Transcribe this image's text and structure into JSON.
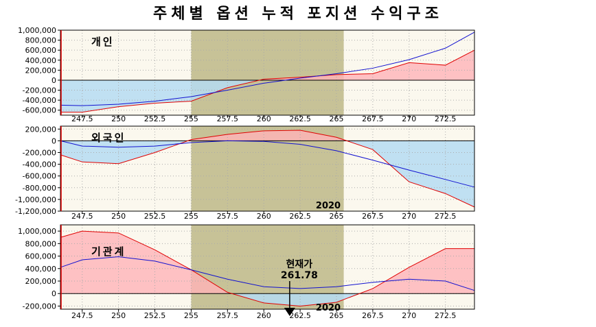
{
  "title": "주체별 옵션 누적 포지션 수익구조",
  "colors": {
    "plot_bg": "#fbf8ee",
    "band": "#b5b07a",
    "profit_fill": "#ffb3b8",
    "loss_fill": "#b5dcf2",
    "red_line": "#e00000",
    "blue_line": "#1010d0",
    "grid": "#aaaaaa"
  },
  "chart_data": [
    {
      "type": "area",
      "label": "개인",
      "x_ticks": [
        "247.5",
        "250",
        "252.5",
        "255",
        "257.5",
        "260",
        "262.5",
        "265",
        "267.5",
        "270",
        "272.5"
      ],
      "xlim": [
        246,
        274.5
      ],
      "ylim": [
        -700000,
        1000000
      ],
      "y_ticks": [
        1000000,
        800000,
        600000,
        400000,
        200000,
        0,
        -200000,
        -400000,
        -600000
      ],
      "y_tick_labels": [
        "1,000,000",
        "800,000",
        "600,000",
        "400,000",
        "200,000",
        "0",
        "-200,000",
        "-400,000",
        "-600,000"
      ],
      "highlight_x": [
        255,
        265.5
      ],
      "series": [
        {
          "role": "expiry",
          "style": "red-fill",
          "x": [
            246,
            247.5,
            250,
            252.5,
            255,
            257.5,
            260,
            262.5,
            265,
            267.5,
            270,
            272.5,
            274.5
          ],
          "y": [
            -640000,
            -640000,
            -530000,
            -460000,
            -420000,
            -150000,
            20000,
            60000,
            110000,
            130000,
            350000,
            300000,
            600000
          ]
        },
        {
          "role": "current",
          "style": "blue-line",
          "x": [
            246,
            247.5,
            250,
            252.5,
            255,
            257.5,
            260,
            262.5,
            265,
            267.5,
            270,
            272.5,
            274.5
          ],
          "y": [
            -500000,
            -510000,
            -480000,
            -420000,
            -330000,
            -200000,
            -60000,
            40000,
            130000,
            240000,
            410000,
            640000,
            960000
          ]
        }
      ]
    },
    {
      "type": "area",
      "label": "외국인",
      "x_ticks": [
        "247.5",
        "250",
        "252.5",
        "255",
        "257.5",
        "260",
        "262.5",
        "265",
        "267.5",
        "270",
        "272.5"
      ],
      "xlim": [
        246,
        274.5
      ],
      "ylim": [
        -1200000,
        250000
      ],
      "y_ticks": [
        200000,
        0,
        -200000,
        -400000,
        -600000,
        -800000,
        -1000000,
        -1200000
      ],
      "y_tick_labels": [
        "200,000",
        "0",
        "-200,000",
        "-400,000",
        "-600,000",
        "-800,000",
        "-1,000,000",
        "-1,200,000"
      ],
      "highlight_x": [
        255,
        265.5
      ],
      "annotation_text": "2020",
      "series": [
        {
          "role": "expiry",
          "style": "red-fill",
          "x": [
            246,
            247.5,
            250,
            252.5,
            255,
            257.5,
            260,
            262.5,
            265,
            267.5,
            270,
            272.5,
            274.5
          ],
          "y": [
            -240000,
            -360000,
            -390000,
            -200000,
            20000,
            110000,
            170000,
            180000,
            60000,
            -150000,
            -700000,
            -900000,
            -1130000
          ]
        },
        {
          "role": "current",
          "style": "blue-line",
          "x": [
            246,
            247.5,
            250,
            252.5,
            255,
            257.5,
            260,
            262.5,
            265,
            267.5,
            270,
            272.5,
            274.5
          ],
          "y": [
            0,
            -90000,
            -110000,
            -90000,
            -30000,
            0,
            -10000,
            -60000,
            -170000,
            -330000,
            -500000,
            -660000,
            -790000
          ]
        }
      ]
    },
    {
      "type": "area",
      "label": "기관계",
      "x_ticks": [
        "247.5",
        "250",
        "252.5",
        "255",
        "257.5",
        "260",
        "262.5",
        "265",
        "267.5",
        "270",
        "272.5"
      ],
      "xlim": [
        246,
        274.5
      ],
      "ylim": [
        -250000,
        1100000
      ],
      "y_ticks": [
        1000000,
        800000,
        600000,
        400000,
        200000,
        0,
        -200000
      ],
      "y_tick_labels": [
        "1,000,000",
        "800,000",
        "600,000",
        "400,000",
        "200,000",
        "0",
        "-200,000"
      ],
      "highlight_x": [
        255,
        265.5
      ],
      "annotation_text": "2020",
      "current_price_label": "현재가",
      "current_price": "261.78",
      "series": [
        {
          "role": "expiry",
          "style": "red-fill",
          "x": [
            246,
            247.5,
            250,
            252.5,
            255,
            257.5,
            260,
            262.5,
            265,
            267.5,
            270,
            272.5,
            274.5
          ],
          "y": [
            900000,
            1000000,
            970000,
            700000,
            380000,
            20000,
            -150000,
            -200000,
            -140000,
            80000,
            420000,
            720000,
            720000
          ]
        },
        {
          "role": "current",
          "style": "blue-line",
          "x": [
            246,
            247.5,
            250,
            252.5,
            255,
            257.5,
            260,
            262.5,
            265,
            267.5,
            270,
            272.5,
            274.5
          ],
          "y": [
            420000,
            540000,
            590000,
            520000,
            380000,
            230000,
            110000,
            80000,
            110000,
            180000,
            230000,
            200000,
            50000
          ]
        }
      ]
    }
  ]
}
